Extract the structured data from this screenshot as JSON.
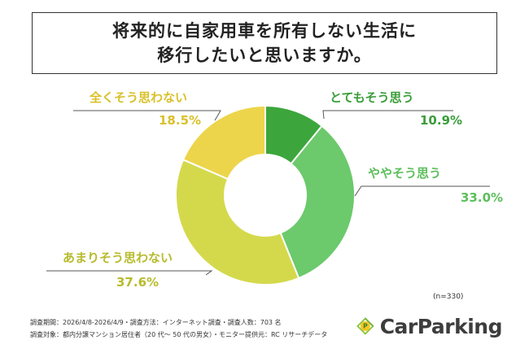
{
  "title": {
    "line1": "将来的に自家用車を所有しない生活に",
    "line2": "移行したいと思いますか。"
  },
  "chart_data": {
    "type": "pie",
    "donut": true,
    "categories": [
      "とてもそう思う",
      "ややそう思う",
      "あまりそう思わない",
      "全くそう思わない"
    ],
    "values": [
      10.9,
      33.0,
      37.6,
      18.5
    ],
    "value_labels": [
      "10.9%",
      "33.0%",
      "37.6%",
      "18.5%"
    ],
    "colors": [
      "#3ca63c",
      "#6cc96c",
      "#d4d94c",
      "#ecd54a"
    ],
    "label_colors": [
      "#3a9d3a",
      "#5cbf5c",
      "#b7bb2c",
      "#d9c12a"
    ],
    "sample_size": "(n=330)"
  },
  "footer": {
    "line1": "調査期間：2026/4/8-2026/4/9・調査方法：インターネット調査・調査人数：703 名",
    "line2": "調査対象：都内分譲マンション居住者（20 代～ 50 代の男女）・モニター提供元：RC リサーチデータ"
  },
  "logo": {
    "text": "CarParking",
    "icon": "parking-p-icon",
    "icon_letter": "P",
    "colors": [
      "#8cc63f",
      "#f3c623",
      "#3a9d3a"
    ]
  }
}
